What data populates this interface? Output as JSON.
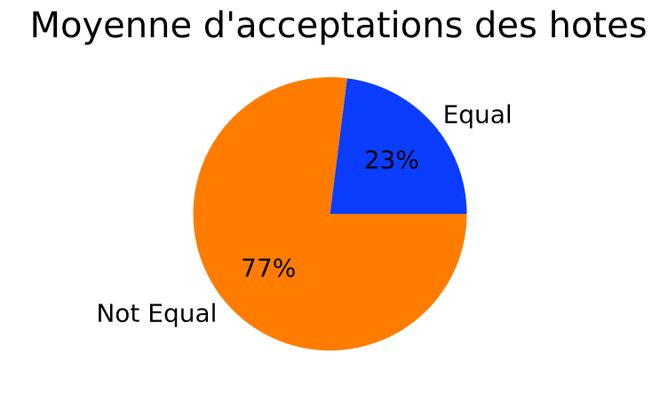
{
  "chart_data": {
    "type": "pie",
    "title": "Moyenne d'acceptations des hotes",
    "slices": [
      {
        "label": "Equal",
        "value": 23,
        "value_label": "23%",
        "color": "#0a3dff"
      },
      {
        "label": "Not Equal",
        "value": 77,
        "value_label": "77%",
        "color": "#ff7c00"
      }
    ],
    "start_angle_deg": 0,
    "direction": "counterclockwise",
    "legend": "none"
  }
}
